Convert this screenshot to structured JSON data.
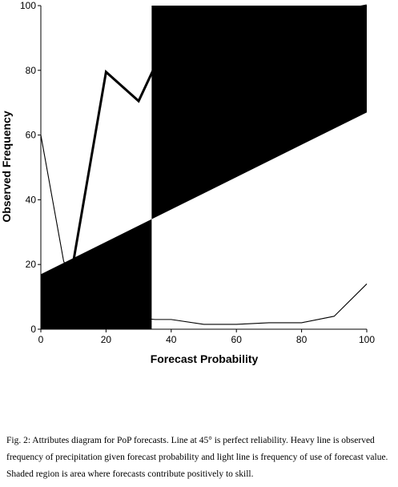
{
  "chart_data": {
    "type": "line",
    "xlabel": "Forecast Probability",
    "ylabel": "Observed Frequency",
    "xlim": [
      0,
      100
    ],
    "ylim": [
      0,
      100
    ],
    "x_ticks": [
      0,
      20,
      40,
      60,
      80,
      100
    ],
    "y_ticks": [
      0,
      20,
      40,
      60,
      80,
      100
    ],
    "x_tick_labels": [
      "0",
      "20",
      "40",
      "60",
      "80",
      "100"
    ],
    "y_tick_labels": [
      "0",
      "20",
      "40",
      "60",
      "80",
      "100"
    ],
    "grid": false,
    "shaded_region_color": "#000000",
    "climatology_frequency": 34,
    "series": [
      {
        "style": "heavy",
        "x": [
          10,
          20,
          30,
          40,
          50,
          60,
          70,
          80,
          90,
          100
        ],
        "y": [
          21,
          79.5,
          70.5,
          92,
          97,
          98,
          99,
          99,
          98,
          100
        ]
      },
      {
        "style": "light",
        "x": [
          0,
          7,
          10,
          20,
          30,
          35,
          40,
          50,
          60,
          70,
          80,
          90,
          100
        ],
        "y": [
          60,
          21,
          15,
          6,
          3.5,
          3,
          3,
          1.5,
          1.5,
          2,
          2,
          4,
          14
        ]
      }
    ],
    "reference_lines": [
      {
        "type": "perfect-reliability",
        "slope": 1
      }
    ]
  },
  "caption": {
    "text": "Fig. 2:  Attributes diagram for PoP forecasts.  Line at 45° is perfect reliability.  Heavy line is observed frequency of precipitation given forecast probability and light line is frequency of use of forecast value.  Shaded region is area where forecasts contribute positively to skill."
  }
}
